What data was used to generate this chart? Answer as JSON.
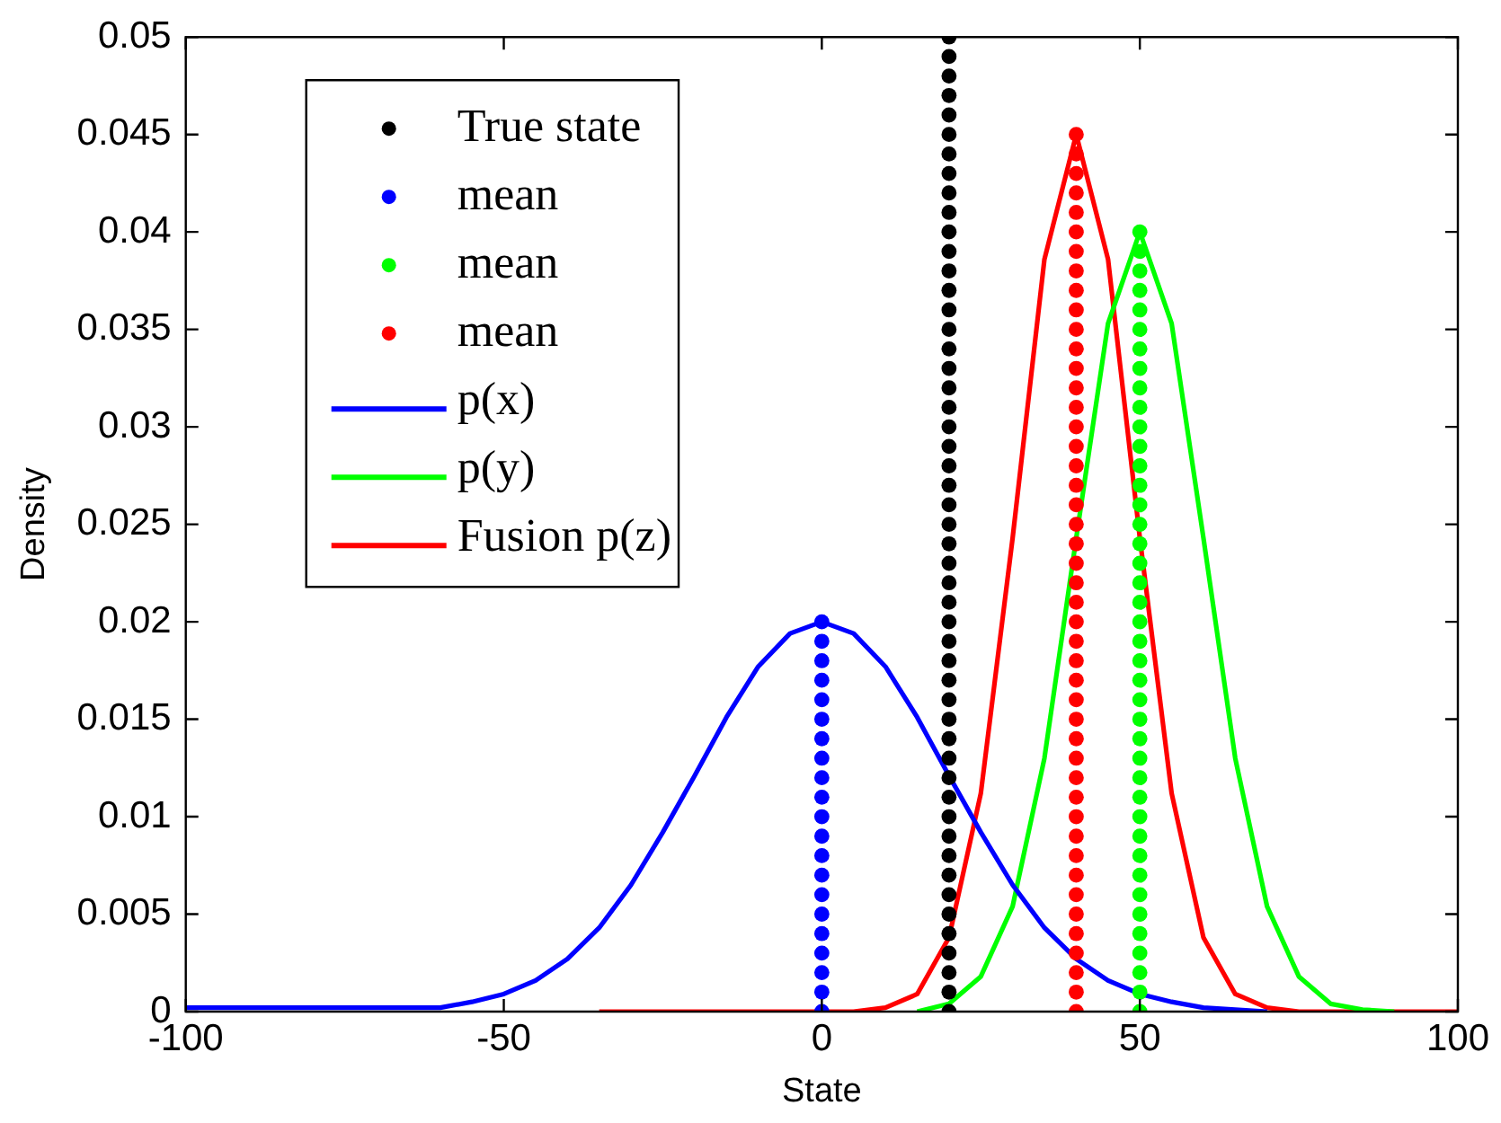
{
  "chart_data": {
    "type": "line",
    "xlabel": "State",
    "ylabel": "Density",
    "x": [
      -100,
      -95,
      -90,
      -85,
      -80,
      -75,
      -70,
      -65,
      -60,
      -55,
      -50,
      -45,
      -40,
      -35,
      -30,
      -25,
      -20,
      -15,
      -10,
      -5,
      0,
      5,
      10,
      15,
      20,
      25,
      30,
      35,
      40,
      45,
      50,
      55,
      60,
      65,
      70,
      75,
      80,
      85,
      90,
      95,
      100
    ],
    "series": [
      {
        "name": "True state",
        "type": "scatter",
        "color": "#000000",
        "x": [
          20,
          20,
          20,
          20,
          20,
          20,
          20,
          20,
          20,
          20,
          20,
          20,
          20,
          20,
          20,
          20,
          20,
          20,
          20,
          20,
          20,
          20,
          20,
          20,
          20,
          20,
          20,
          20,
          20,
          20,
          20,
          20,
          20,
          20,
          20,
          20,
          20,
          20,
          20,
          20,
          20,
          20,
          20,
          20,
          20,
          20,
          20,
          20,
          20,
          20,
          20
        ],
        "values": [
          0,
          0.001,
          0.002,
          0.003,
          0.004,
          0.005,
          0.006,
          0.007,
          0.008,
          0.009,
          0.01,
          0.011,
          0.012,
          0.013,
          0.014,
          0.015,
          0.016,
          0.017,
          0.018,
          0.019,
          0.02,
          0.021,
          0.022,
          0.023,
          0.024,
          0.025,
          0.026,
          0.027,
          0.028,
          0.029,
          0.03,
          0.031,
          0.032,
          0.033,
          0.034,
          0.035,
          0.036,
          0.037,
          0.038,
          0.039,
          0.04,
          0.041,
          0.042,
          0.043,
          0.044,
          0.045,
          0.046,
          0.047,
          0.048,
          0.049,
          0.05
        ]
      },
      {
        "name": "mean",
        "type": "scatter",
        "color": "#0000ff",
        "x": [
          0,
          0,
          0,
          0,
          0,
          0,
          0,
          0,
          0,
          0,
          0,
          0,
          0,
          0,
          0,
          0,
          0,
          0,
          0,
          0,
          0
        ],
        "values": [
          0,
          0.001,
          0.002,
          0.003,
          0.004,
          0.005,
          0.006,
          0.007,
          0.008,
          0.009,
          0.01,
          0.011,
          0.012,
          0.013,
          0.014,
          0.015,
          0.016,
          0.017,
          0.018,
          0.019,
          0.02
        ]
      },
      {
        "name": "mean",
        "type": "scatter",
        "color": "#00ff00",
        "x": [
          50,
          50,
          50,
          50,
          50,
          50,
          50,
          50,
          50,
          50,
          50,
          50,
          50,
          50,
          50,
          50,
          50,
          50,
          50,
          50,
          50,
          50,
          50,
          50,
          50,
          50,
          50,
          50,
          50,
          50,
          50,
          50,
          50,
          50,
          50,
          50,
          50,
          50,
          50,
          50,
          50
        ],
        "values": [
          0,
          0.001,
          0.002,
          0.003,
          0.004,
          0.005,
          0.006,
          0.007,
          0.008,
          0.009,
          0.01,
          0.011,
          0.012,
          0.013,
          0.014,
          0.015,
          0.016,
          0.017,
          0.018,
          0.019,
          0.02,
          0.021,
          0.022,
          0.023,
          0.024,
          0.025,
          0.026,
          0.027,
          0.028,
          0.029,
          0.03,
          0.031,
          0.032,
          0.033,
          0.034,
          0.035,
          0.036,
          0.037,
          0.038,
          0.039,
          0.04
        ]
      },
      {
        "name": "mean",
        "type": "scatter",
        "color": "#ff0000",
        "x": [
          40,
          40,
          40,
          40,
          40,
          40,
          40,
          40,
          40,
          40,
          40,
          40,
          40,
          40,
          40,
          40,
          40,
          40,
          40,
          40,
          40,
          40,
          40,
          40,
          40,
          40,
          40,
          40,
          40,
          40,
          40,
          40,
          40,
          40,
          40,
          40,
          40,
          40,
          40,
          40,
          40,
          40,
          40,
          40,
          40,
          40
        ],
        "values": [
          0,
          0.001,
          0.002,
          0.003,
          0.004,
          0.005,
          0.006,
          0.007,
          0.008,
          0.009,
          0.01,
          0.011,
          0.012,
          0.013,
          0.014,
          0.015,
          0.016,
          0.017,
          0.018,
          0.019,
          0.02,
          0.021,
          0.022,
          0.023,
          0.024,
          0.025,
          0.026,
          0.027,
          0.028,
          0.029,
          0.03,
          0.031,
          0.032,
          0.033,
          0.034,
          0.035,
          0.036,
          0.037,
          0.038,
          0.039,
          0.04,
          0.041,
          0.042,
          0.043,
          0.044,
          0.045
        ]
      },
      {
        "name": "p(x)",
        "color": "#0000ff",
        "values": [
          0.0002,
          0.0002,
          0.0002,
          0.0002,
          0.0002,
          0.0002,
          0.0002,
          0.0002,
          0.0002,
          0.0005,
          0.0009,
          0.0016,
          0.0027,
          0.0043,
          0.0065,
          0.0092,
          0.0121,
          0.0151,
          0.0177,
          0.0194,
          0.02,
          0.0194,
          0.0177,
          0.0151,
          0.0121,
          0.0092,
          0.0065,
          0.0043,
          0.0027,
          0.0016,
          0.0009,
          0.0005,
          0.0002,
          0.0001,
          0,
          null,
          null,
          null,
          null,
          null,
          null
        ]
      },
      {
        "name": "p(y)",
        "color": "#00ff00",
        "values": [
          null,
          null,
          null,
          null,
          null,
          null,
          null,
          null,
          null,
          null,
          null,
          null,
          null,
          null,
          null,
          null,
          null,
          null,
          null,
          null,
          null,
          null,
          null,
          0,
          0.0004,
          0.0018,
          0.0054,
          0.013,
          0.0243,
          0.0353,
          0.04,
          0.0353,
          0.0243,
          0.013,
          0.0054,
          0.0018,
          0.0004,
          0.0001,
          0,
          null,
          null
        ]
      },
      {
        "name": "Fusion p(z)",
        "color": "#ff0000",
        "values": [
          null,
          null,
          null,
          null,
          null,
          null,
          null,
          null,
          null,
          null,
          null,
          null,
          null,
          0,
          0,
          0,
          0,
          0,
          0,
          0,
          0,
          0,
          0.0002,
          0.0009,
          0.0038,
          0.0112,
          0.0243,
          0.0386,
          0.045,
          0.0386,
          0.0243,
          0.0112,
          0.0038,
          0.0009,
          0.0002,
          0,
          0,
          0,
          0,
          0,
          0
        ]
      }
    ],
    "xlim": [
      -100,
      100
    ],
    "xticks": [
      -100,
      -50,
      0,
      50,
      100
    ],
    "ylim": [
      0,
      0.05
    ],
    "yticks": [
      0,
      0.005,
      0.01,
      0.015,
      0.02,
      0.025,
      0.03,
      0.035,
      0.04,
      0.045,
      0.05
    ],
    "grid": false,
    "legend": "top left",
    "line_style": "solid"
  }
}
